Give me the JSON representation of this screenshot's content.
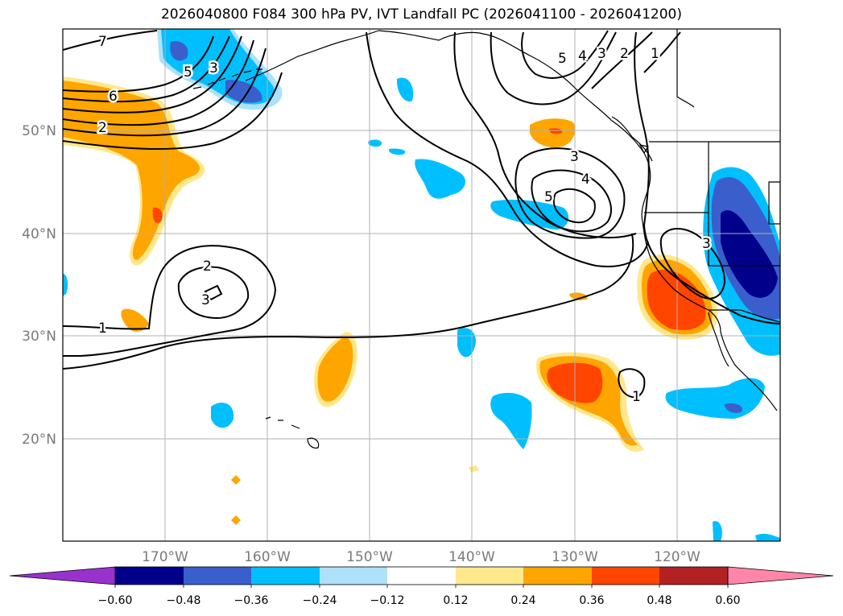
{
  "title": "2026040800 F084 300 hPa PV, IVT Landfall PC (2026041100 - 2026041200)",
  "latitude_labels": [
    "50°N",
    "40°N",
    "30°N",
    "20°N"
  ],
  "longitude_labels": [
    "170°W",
    "160°W",
    "150°W",
    "140°W",
    "130°W",
    "120°W"
  ],
  "colorbar": {
    "tick_labels": [
      "−0.60",
      "−0.48",
      "−0.36",
      "−0.24",
      "−0.12",
      "0.12",
      "0.24",
      "0.36",
      "0.48",
      "0.60"
    ],
    "colors": [
      "#9932CC",
      "#00008B",
      "#3A5FCD",
      "#00BFFF",
      "#ADE1FA",
      "#FFFFFF",
      "#FFE88C",
      "#FFA500",
      "#FF4500",
      "#B22222",
      "#FF85A9"
    ]
  },
  "contour_labels": [
    "7",
    "6",
    "2",
    "5",
    "3",
    "5",
    "4",
    "3",
    "2",
    "1",
    "3",
    "4",
    "5",
    "2",
    "3",
    "1",
    "1",
    "3"
  ],
  "colors": {
    "frame": "#000000",
    "grid": "#b0b0b0",
    "coast": "#000000"
  }
}
